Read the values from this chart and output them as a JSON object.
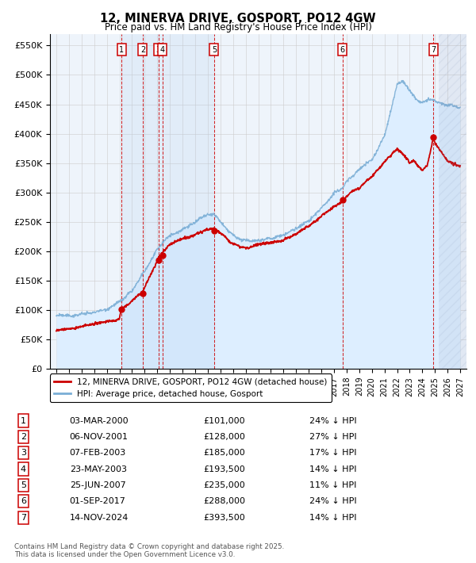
{
  "title": "12, MINERVA DRIVE, GOSPORT, PO12 4GW",
  "subtitle": "Price paid vs. HM Land Registry's House Price Index (HPI)",
  "ylabel_ticks": [
    "£0",
    "£50K",
    "£100K",
    "£150K",
    "£200K",
    "£250K",
    "£300K",
    "£350K",
    "£400K",
    "£450K",
    "£500K",
    "£550K"
  ],
  "ytick_values": [
    0,
    50000,
    100000,
    150000,
    200000,
    250000,
    300000,
    350000,
    400000,
    450000,
    500000,
    550000
  ],
  "xlim": [
    1994.5,
    2027.5
  ],
  "ylim": [
    0,
    570000
  ],
  "legend_line1": "12, MINERVA DRIVE, GOSPORT, PO12 4GW (detached house)",
  "legend_line2": "HPI: Average price, detached house, Gosport",
  "footer": "Contains HM Land Registry data © Crown copyright and database right 2025.\nThis data is licensed under the Open Government Licence v3.0.",
  "sales": [
    {
      "num": 1,
      "date": "03-MAR-2000",
      "price": 101000,
      "hpi_diff": "24% ↓ HPI",
      "year": 2000.17
    },
    {
      "num": 2,
      "date": "06-NOV-2001",
      "price": 128000,
      "hpi_diff": "27% ↓ HPI",
      "year": 2001.85
    },
    {
      "num": 3,
      "date": "07-FEB-2003",
      "price": 185000,
      "hpi_diff": "17% ↓ HPI",
      "year": 2003.1
    },
    {
      "num": 4,
      "date": "23-MAY-2003",
      "price": 193500,
      "hpi_diff": "14% ↓ HPI",
      "year": 2003.4
    },
    {
      "num": 5,
      "date": "25-JUN-2007",
      "price": 235000,
      "hpi_diff": "11% ↓ HPI",
      "year": 2007.5
    },
    {
      "num": 6,
      "date": "01-SEP-2017",
      "price": 288000,
      "hpi_diff": "24% ↓ HPI",
      "year": 2017.67
    },
    {
      "num": 7,
      "date": "14-NOV-2024",
      "price": 393500,
      "hpi_diff": "14% ↓ HPI",
      "year": 2024.87
    }
  ],
  "red_line_color": "#cc0000",
  "blue_line_color": "#7aaed6",
  "blue_fill_color": "#ddeeff",
  "grid_color": "#cccccc",
  "background_color": "#ffffff",
  "sale_box_color": "#cc0000",
  "vline_color": "#cc0000",
  "chart_bg_color": "#eef4fb",
  "hatch_color": "#c0c8e0"
}
